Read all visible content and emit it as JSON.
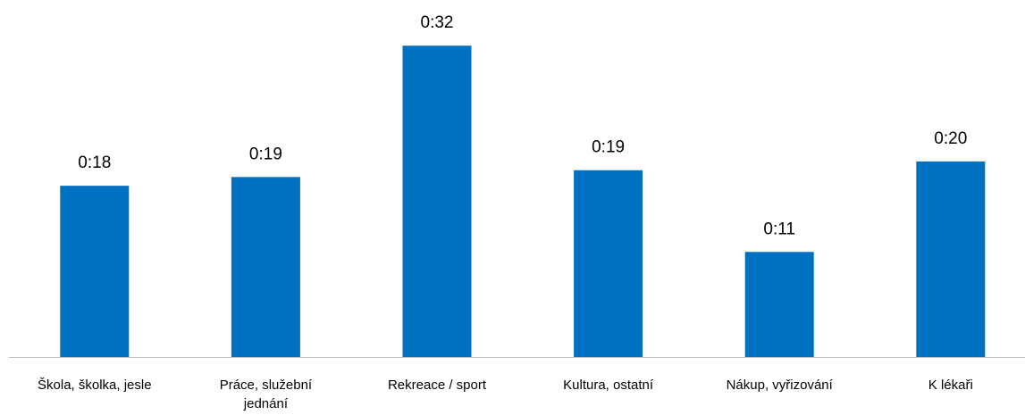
{
  "chart_data": {
    "type": "bar",
    "categories": [
      "Škola, školka, jesle",
      "Práce, služební jednání",
      "Rekreace / sport",
      "Kultura, ostatní",
      "Nákup, vyřizování",
      "K lékaři"
    ],
    "values": [
      17.6,
      18.5,
      32.0,
      19.2,
      10.8,
      20.1
    ],
    "value_labels": [
      "0:18",
      "0:19",
      "0:32",
      "0:19",
      "0:11",
      "0:20"
    ],
    "color": "#0070c0",
    "ylim": [
      0,
      35
    ]
  }
}
